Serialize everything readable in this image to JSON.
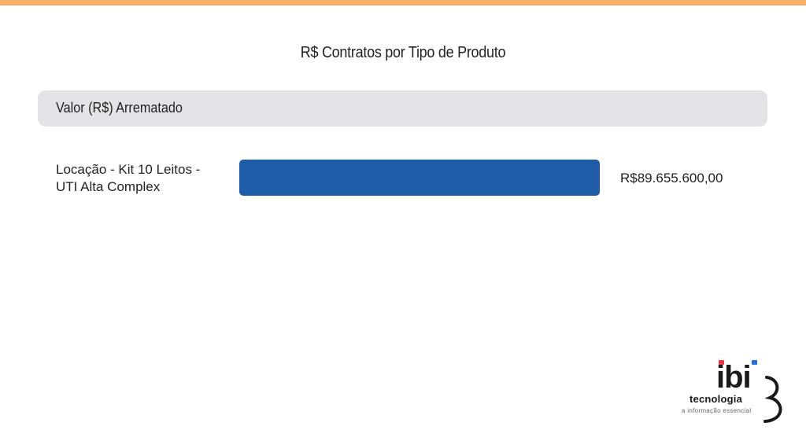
{
  "colors": {
    "accent_bar": "#f7b267",
    "header_bg": "#e3e3e5",
    "bar": "#1f5ca8",
    "logo_red": "#e63946",
    "logo_blue": "#2a6fd1"
  },
  "chart_data": {
    "type": "bar",
    "orientation": "horizontal",
    "title": "R$ Contratos por Tipo de Produto",
    "measure_label": "Valor (R$) Arrematado",
    "categories": [
      [
        "Locação - Kit 10 Leitos -",
        "UTI Alta Complex"
      ]
    ],
    "values": [
      89655600
    ],
    "value_labels": [
      "R$89.655.600,00"
    ],
    "xlim": [
      0,
      89655600
    ],
    "grid": false
  },
  "logo": {
    "word": "ibi",
    "subtitle": "tecnologia",
    "tagline": "a informação essencial"
  }
}
